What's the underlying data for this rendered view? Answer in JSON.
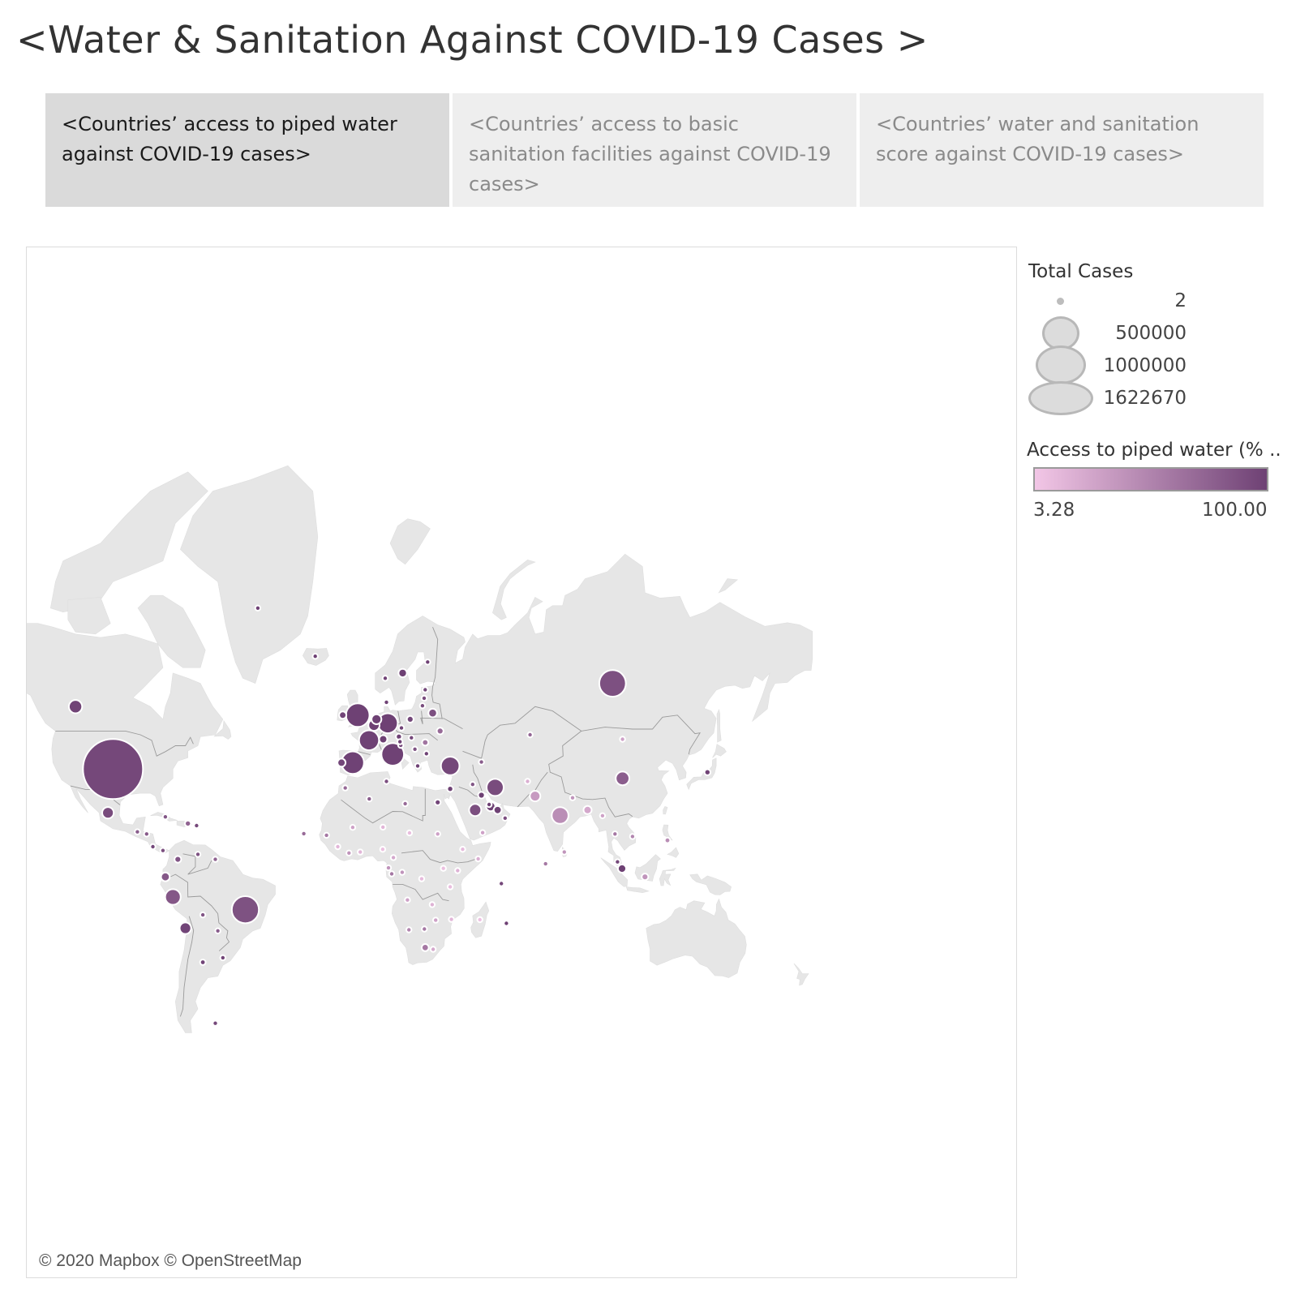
{
  "title": "<Water & Sanitation Against COVID-19 Cases >",
  "tabs": [
    {
      "label": "<Countries’ access to piped water against COVID-19 cases>",
      "active": true
    },
    {
      "label": "<Countries’ access to basic sanitation facilities against COVID-19 cases>",
      "active": false
    },
    {
      "label": "<Countries’ water and sanitation score against COVID-19 cases>",
      "active": false
    }
  ],
  "map": {
    "attribution": "© 2020 Mapbox © OpenStreetMap",
    "land_color": "#e6e6e6",
    "border_color": "#9a9a9a"
  },
  "legend": {
    "size_title": "Total Cases",
    "size_items": [
      "2",
      "500000",
      "1000000",
      "1622670"
    ],
    "color_title": "Access to piped water (% ..",
    "color_min_label": "3.28",
    "color_max_label": "100.00",
    "color_min": "#f2c6e6",
    "color_max": "#6e4174"
  },
  "chart_data": {
    "type": "map-bubble",
    "size_measure": "Total Cases",
    "color_measure": "Access to piped water (% ..",
    "size_range": [
      2,
      1622670
    ],
    "color_range": [
      3.28,
      100.0
    ],
    "points": [
      {
        "region": "United States",
        "lon": -100,
        "lat": 38,
        "cases": 1622670,
        "water": 95
      },
      {
        "region": "Canada",
        "lon": -115,
        "lat": 55,
        "cases": 80000,
        "water": 98
      },
      {
        "region": "Mexico",
        "lon": -102,
        "lat": 23,
        "cases": 60000,
        "water": 92
      },
      {
        "region": "Brazil",
        "lon": -47,
        "lat": -15,
        "cases": 330000,
        "water": 88
      },
      {
        "region": "Peru",
        "lon": -76,
        "lat": -10,
        "cases": 110000,
        "water": 84
      },
      {
        "region": "Chile",
        "lon": -71,
        "lat": -22,
        "cases": 60000,
        "water": 97
      },
      {
        "region": "Ecuador",
        "lon": -79,
        "lat": -2,
        "cases": 35000,
        "water": 83
      },
      {
        "region": "Colombia",
        "lon": -74,
        "lat": 5,
        "cases": 20000,
        "water": 86
      },
      {
        "region": "United Kingdom",
        "lon": -2,
        "lat": 53,
        "cases": 250000,
        "water": 100
      },
      {
        "region": "Ireland",
        "lon": -8,
        "lat": 53,
        "cases": 24000,
        "water": 97
      },
      {
        "region": "Spain",
        "lon": -4,
        "lat": 40,
        "cases": 230000,
        "water": 99
      },
      {
        "region": "Portugal",
        "lon": -8.5,
        "lat": 40,
        "cases": 30000,
        "water": 96
      },
      {
        "region": "France",
        "lon": 2.5,
        "lat": 46.5,
        "cases": 180000,
        "water": 99
      },
      {
        "region": "Italy",
        "lon": 12,
        "lat": 42.5,
        "cases": 228000,
        "water": 99
      },
      {
        "region": "Germany",
        "lon": 10,
        "lat": 51,
        "cases": 178000,
        "water": 100
      },
      {
        "region": "Belgium",
        "lon": 4.5,
        "lat": 50.5,
        "cases": 56000,
        "water": 100
      },
      {
        "region": "Netherlands",
        "lon": 5.5,
        "lat": 52,
        "cases": 44000,
        "water": 100
      },
      {
        "region": "Turkey",
        "lon": 35,
        "lat": 39,
        "cases": 155000,
        "water": 95
      },
      {
        "region": "Iran",
        "lon": 53,
        "lat": 32,
        "cases": 130000,
        "water": 92
      },
      {
        "region": "Saudi Arabia",
        "lon": 45,
        "lat": 24,
        "cases": 67000,
        "water": 90
      },
      {
        "region": "Qatar",
        "lon": 51.2,
        "lat": 25.3,
        "cases": 40000,
        "water": 99
      },
      {
        "region": "United Arab Emirates",
        "lon": 54,
        "lat": 24,
        "cases": 28000,
        "water": 99
      },
      {
        "region": "Russia",
        "lon": 100,
        "lat": 60,
        "cases": 317000,
        "water": 89
      },
      {
        "region": "China",
        "lon": 104,
        "lat": 35,
        "cases": 84000,
        "water": 79
      },
      {
        "region": "India",
        "lon": 79,
        "lat": 22,
        "cases": 125000,
        "water": 44
      },
      {
        "region": "Pakistan",
        "lon": 69,
        "lat": 29,
        "cases": 50000,
        "water": 35
      },
      {
        "region": "Bangladesh",
        "lon": 90,
        "lat": 24,
        "cases": 30000,
        "water": 25
      },
      {
        "region": "Singapore",
        "lon": 103.8,
        "lat": 1.3,
        "cases": 31000,
        "water": 100
      },
      {
        "region": "Indonesia",
        "lon": 113,
        "lat": -2,
        "cases": 20000,
        "water": 40
      },
      {
        "region": "Sweden",
        "lon": 16,
        "lat": 62,
        "cases": 32000,
        "water": 100
      },
      {
        "region": "Poland",
        "lon": 19,
        "lat": 52,
        "cases": 20000,
        "water": 96
      },
      {
        "region": "Belarus",
        "lon": 28,
        "lat": 53.5,
        "cases": 33000,
        "water": 89
      },
      {
        "region": "Ukraine",
        "lon": 31,
        "lat": 49,
        "cases": 20000,
        "water": 70
      },
      {
        "region": "Switzerland",
        "lon": 8.2,
        "lat": 46.8,
        "cases": 30000,
        "water": 100
      },
      {
        "region": "Austria",
        "lon": 14.5,
        "lat": 47.5,
        "cases": 16000,
        "water": 100
      },
      {
        "region": "Romania",
        "lon": 25,
        "lat": 45.9,
        "cases": 18000,
        "water": 63
      },
      {
        "region": "Serbia",
        "lon": 20.9,
        "lat": 44,
        "cases": 11000,
        "water": 88
      },
      {
        "region": "Egypt",
        "lon": 30,
        "lat": 26.8,
        "cases": 15000,
        "water": 97
      },
      {
        "region": "Israel",
        "lon": 35,
        "lat": 31.5,
        "cases": 16000,
        "water": 100
      },
      {
        "region": "Kuwait",
        "lon": 47.5,
        "lat": 29.3,
        "cases": 20000,
        "water": 100
      },
      {
        "region": "Finland",
        "lon": 26,
        "lat": 64,
        "cases": 6400,
        "water": 99
      },
      {
        "region": "Norway",
        "lon": 9,
        "lat": 61,
        "cases": 8300,
        "water": 98
      },
      {
        "region": "Denmark",
        "lon": 9.5,
        "lat": 56,
        "cases": 11000,
        "water": 99
      },
      {
        "region": "Iceland",
        "lon": -19,
        "lat": 65,
        "cases": 1800,
        "water": 100
      },
      {
        "region": "Greenland",
        "lon": -42,
        "lat": 72,
        "cases": 11,
        "water": 100
      },
      {
        "region": "Kazakhstan",
        "lon": 67,
        "lat": 48,
        "cases": 8000,
        "water": 73
      },
      {
        "region": "Afghanistan",
        "lon": 66,
        "lat": 34,
        "cases": 8000,
        "water": 20
      },
      {
        "region": "Oman",
        "lon": 57,
        "lat": 21,
        "cases": 7000,
        "water": 90
      },
      {
        "region": "Philippines",
        "lon": 122,
        "lat": 12.5,
        "cases": 14000,
        "water": 45
      },
      {
        "region": "Malaysia",
        "lon": 102,
        "lat": 4,
        "cases": 7000,
        "water": 95
      },
      {
        "region": "Thailand",
        "lon": 101,
        "lat": 15,
        "cases": 3000,
        "water": 60
      },
      {
        "region": "Japan",
        "lon": 138,
        "lat": 37,
        "cases": 16000,
        "water": 98
      },
      {
        "region": "South Africa",
        "lon": 25,
        "lat": -29,
        "cases": 23000,
        "water": 60
      },
      {
        "region": "Nigeria",
        "lon": 8,
        "lat": 9,
        "cases": 8000,
        "water": 8
      },
      {
        "region": "Ghana",
        "lon": -1,
        "lat": 7.9,
        "cases": 6800,
        "water": 15
      },
      {
        "region": "Cameroon",
        "lon": 12.3,
        "lat": 5.7,
        "cases": 4800,
        "water": 25
      },
      {
        "region": "Algeria",
        "lon": 2.6,
        "lat": 28,
        "cases": 8500,
        "water": 80
      },
      {
        "region": "Morocco",
        "lon": -7,
        "lat": 31.8,
        "cases": 7500,
        "water": 70
      },
      {
        "region": "Sudan",
        "lon": 30,
        "lat": 15,
        "cases": 4000,
        "water": 30
      },
      {
        "region": "Ethiopia",
        "lon": 40,
        "lat": 9,
        "cases": 800,
        "water": 12
      },
      {
        "region": "Kenya",
        "lon": 38,
        "lat": 0.5,
        "cases": 1500,
        "water": 18
      },
      {
        "region": "Tanzania",
        "lon": 35,
        "lat": -6,
        "cases": 500,
        "water": 10
      },
      {
        "region": "DR Congo",
        "lon": 23.6,
        "lat": -2.8,
        "cases": 2500,
        "water": 12
      },
      {
        "region": "Angola",
        "lon": 17.9,
        "lat": -11.2,
        "cases": 80,
        "water": 30
      },
      {
        "region": "Zambia",
        "lon": 27.8,
        "lat": -13,
        "cases": 1000,
        "water": 18
      },
      {
        "region": "Madagascar",
        "lon": 46.9,
        "lat": -18.8,
        "cases": 600,
        "water": 7
      },
      {
        "region": "Mauritius",
        "lon": 57.5,
        "lat": -20.2,
        "cases": 330,
        "water": 100
      },
      {
        "region": "Bolivia",
        "lon": -64,
        "lat": -17,
        "cases": 7000,
        "water": 85
      },
      {
        "region": "Argentina",
        "lon": -64,
        "lat": -34,
        "cases": 14000,
        "water": 97
      },
      {
        "region": "Uruguay",
        "lon": -56,
        "lat": -32.5,
        "cases": 780,
        "water": 98
      },
      {
        "region": "Paraguay",
        "lon": -58,
        "lat": -23,
        "cases": 900,
        "water": 80
      },
      {
        "region": "Venezuela",
        "lon": -66,
        "lat": 7,
        "cases": 1100,
        "water": 88
      },
      {
        "region": "Guyana",
        "lon": -59,
        "lat": 5,
        "cases": 150,
        "water": 76
      },
      {
        "region": "Falkland Islands",
        "lon": -59,
        "lat": -51.7,
        "cases": 13,
        "water": 95
      },
      {
        "region": "Cuba",
        "lon": -79,
        "lat": 21.5,
        "cases": 2000,
        "water": 85
      },
      {
        "region": "Dominican Republic",
        "lon": -70,
        "lat": 19,
        "cases": 16000,
        "water": 75
      },
      {
        "region": "Puerto Rico",
        "lon": -66.5,
        "lat": 18.2,
        "cases": 3500,
        "water": 95
      },
      {
        "region": "Guatemala",
        "lon": -90.2,
        "lat": 15.8,
        "cases": 3700,
        "water": 80
      },
      {
        "region": "Honduras",
        "lon": -86.5,
        "lat": 15,
        "cases": 4000,
        "water": 82
      },
      {
        "region": "Panama",
        "lon": -80,
        "lat": 8.5,
        "cases": 10000,
        "water": 90
      },
      {
        "region": "Costa Rica",
        "lon": -84,
        "lat": 10,
        "cases": 900,
        "water": 97
      },
      {
        "region": "Sri Lanka",
        "lon": 80.7,
        "lat": 7.9,
        "cases": 1100,
        "water": 40
      },
      {
        "region": "Nepal",
        "lon": 84,
        "lat": 28.4,
        "cases": 700,
        "water": 40
      },
      {
        "region": "Myanmar",
        "lon": 96,
        "lat": 21.9,
        "cases": 200,
        "water": 30
      },
      {
        "region": "Vietnam",
        "lon": 108,
        "lat": 14,
        "cases": 320,
        "water": 50
      },
      {
        "region": "Mongolia",
        "lon": 104,
        "lat": 46.8,
        "cases": 140,
        "water": 30
      },
      {
        "region": "Maldives",
        "lon": 73.2,
        "lat": 3.2,
        "cases": 1400,
        "water": 60
      },
      {
        "region": "Seychelles",
        "lon": 55.5,
        "lat": -4.7,
        "cases": 11,
        "water": 95
      },
      {
        "region": "Senegal",
        "lon": -14.5,
        "lat": 14.5,
        "cases": 3000,
        "water": 60
      },
      {
        "region": "Cape Verde",
        "lon": -23.6,
        "lat": 15.1,
        "cases": 400,
        "water": 70
      },
      {
        "region": "Greece",
        "lon": 22,
        "lat": 39,
        "cases": 2900,
        "water": 100
      },
      {
        "region": "Iraq",
        "lon": 44,
        "lat": 33,
        "cases": 4500,
        "water": 85
      },
      {
        "region": "Azerbaijan",
        "lon": 47.5,
        "lat": 40.2,
        "cases": 4300,
        "water": 80
      },
      {
        "region": "Czechia",
        "lon": 15.5,
        "lat": 49.8,
        "cases": 8900,
        "water": 98
      },
      {
        "region": "Hungary",
        "lon": 19.5,
        "lat": 47.2,
        "cases": 3700,
        "water": 95
      },
      {
        "region": "Estonia",
        "lon": 25,
        "lat": 58.7,
        "cases": 1800,
        "water": 96
      },
      {
        "region": "Latvia",
        "lon": 24.6,
        "lat": 56.9,
        "cases": 1000,
        "water": 93
      },
      {
        "region": "Lithuania",
        "lon": 23.9,
        "lat": 55.2,
        "cases": 1600,
        "water": 92
      },
      {
        "region": "Bulgaria",
        "lon": 25.5,
        "lat": 42.7,
        "cases": 2300,
        "water": 99
      },
      {
        "region": "Croatia",
        "lon": 15.2,
        "lat": 45.1,
        "cases": 2200,
        "water": 94
      },
      {
        "region": "Slovenia",
        "lon": 14.9,
        "lat": 46.1,
        "cases": 1470,
        "water": 99
      },
      {
        "region": "Tunisia",
        "lon": 9.5,
        "lat": 34,
        "cases": 1050,
        "water": 90
      },
      {
        "region": "Libya",
        "lon": 17,
        "lat": 26.3,
        "cases": 70,
        "water": 70
      },
      {
        "region": "Mali",
        "lon": -4,
        "lat": 17.5,
        "cases": 1000,
        "water": 30
      },
      {
        "region": "Niger",
        "lon": 8.1,
        "lat": 17.6,
        "cases": 950,
        "water": 15
      },
      {
        "region": "Chad",
        "lon": 18.7,
        "lat": 15.4,
        "cases": 700,
        "water": 10
      },
      {
        "region": "Cote d'Ivoire",
        "lon": -5.5,
        "lat": 7.5,
        "cases": 2500,
        "water": 40
      },
      {
        "region": "Guinea",
        "lon": -10,
        "lat": 10,
        "cases": 3500,
        "water": 15
      },
      {
        "region": "Mozambique",
        "lon": 35.5,
        "lat": -18.7,
        "cases": 230,
        "water": 15
      },
      {
        "region": "Zimbabwe",
        "lon": 29.2,
        "lat": -19,
        "cases": 56,
        "water": 30
      },
      {
        "region": "Namibia",
        "lon": 18.5,
        "lat": -22.6,
        "cases": 21,
        "water": 50
      },
      {
        "region": "Botswana",
        "lon": 24.7,
        "lat": -22.3,
        "cases": 35,
        "water": 60
      },
      {
        "region": "Lesotho",
        "lon": 28.2,
        "lat": -29.6,
        "cases": 2,
        "water": 25
      },
      {
        "region": "Uganda",
        "lon": 32.3,
        "lat": 1.4,
        "cases": 300,
        "water": 8
      },
      {
        "region": "Somalia",
        "lon": 46.2,
        "lat": 5.2,
        "cases": 1700,
        "water": 20
      },
      {
        "region": "Gabon",
        "lon": 11.6,
        "lat": -0.8,
        "cases": 2300,
        "water": 60
      },
      {
        "region": "Congo",
        "lon": 15.8,
        "lat": -0.2,
        "cases": 500,
        "water": 40
      },
      {
        "region": "Equatorial Guinea",
        "lon": 10.3,
        "lat": 1.6,
        "cases": 1300,
        "water": 40
      },
      {
        "region": "Yemen",
        "lon": 48,
        "lat": 15.5,
        "cases": 250,
        "water": 30
      },
      {
        "region": "Bahrain",
        "lon": 50.6,
        "lat": 26,
        "cases": 9000,
        "water": 100
      }
    ]
  }
}
